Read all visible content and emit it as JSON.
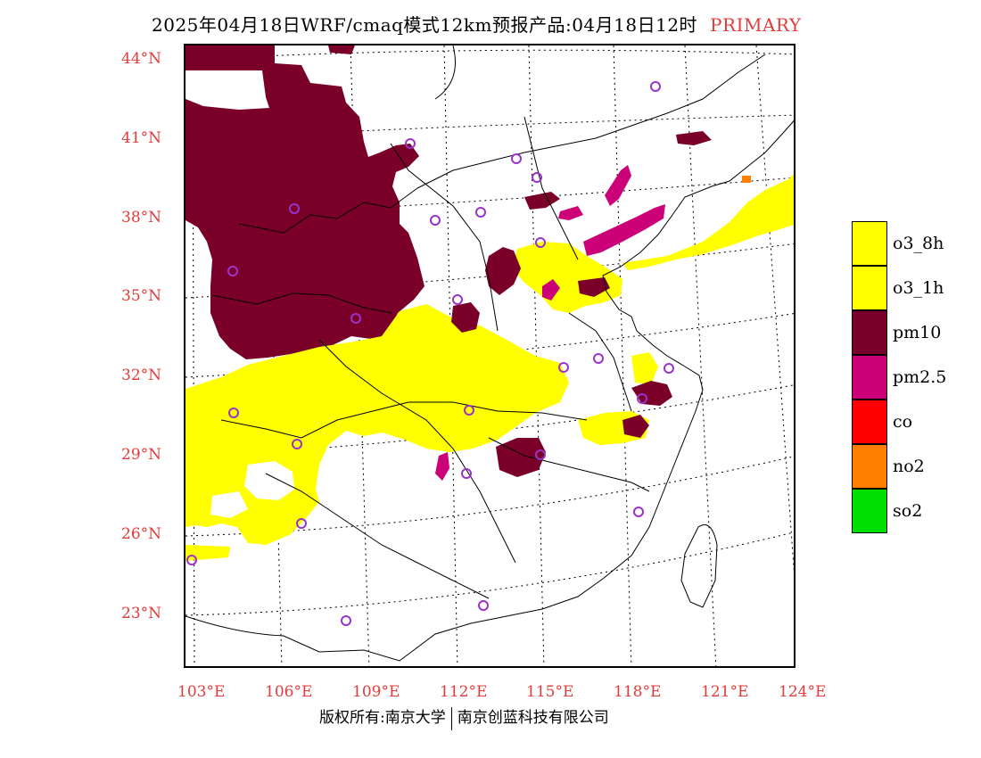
{
  "title": {
    "main": "2025年04月18日WRF/cmaq模式12km预报产品:04月18日12时",
    "tag": "PRIMARY"
  },
  "axes": {
    "lat_labels": [
      "44°N",
      "41°N",
      "38°N",
      "35°N",
      "32°N",
      "29°N",
      "26°N",
      "23°N"
    ],
    "lon_labels": [
      "103°E",
      "106°E",
      "109°E",
      "112°E",
      "115°E",
      "118°E",
      "121°E",
      "124°E"
    ]
  },
  "legend": [
    {
      "label": "o3_8h",
      "color": "#ffff00"
    },
    {
      "label": "o3_1h",
      "color": "#ffff00"
    },
    {
      "label": "pm10",
      "color": "#7a0029"
    },
    {
      "label": "pm2.5",
      "color": "#cc0077"
    },
    {
      "label": "co",
      "color": "#ff0000"
    },
    {
      "label": "no2",
      "color": "#ff8000"
    },
    {
      "label": "so2",
      "color": "#00e000"
    }
  ],
  "colors": {
    "pm10": "#7a0029",
    "pm25": "#cc0077",
    "o3": "#ffff00",
    "no2": "#ff8000",
    "station": "#9933cc",
    "axis_text": "#e33b3b"
  },
  "footer": {
    "left": "版权所有:南京大学",
    "right": "南京创蓝科技有限公司"
  }
}
